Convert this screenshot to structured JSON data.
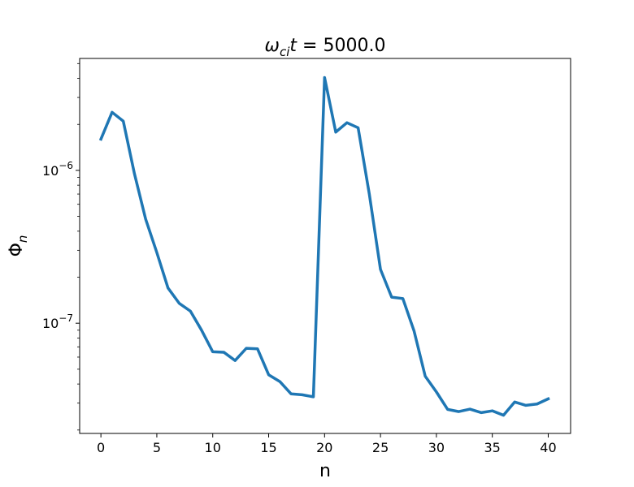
{
  "chart_data": {
    "type": "line",
    "title": "ωcit = 5000.0",
    "title_parts": {
      "omega": "ω",
      "sub": "ci",
      "t": "t",
      "eq": " = 5000.0"
    },
    "xlabel": "n",
    "ylabel": "Φn",
    "ylabel_parts": {
      "phi": "Φ",
      "sub": "n"
    },
    "y_scale": "log",
    "xlim": [
      -1.9,
      42.0
    ],
    "ylim": [
      1.9e-08,
      5.4e-06
    ],
    "x_ticks": [
      0,
      5,
      10,
      15,
      20,
      25,
      30,
      35,
      40
    ],
    "y_major_ticks": [
      {
        "value": 1e-06,
        "base": "10",
        "exp": "−6"
      },
      {
        "value": 1e-07,
        "base": "10",
        "exp": "−7"
      }
    ],
    "grid": false,
    "series": [
      {
        "color": "#1f77b4",
        "x": [
          0,
          1,
          2,
          3,
          4,
          5,
          6,
          7,
          8,
          9,
          10,
          11,
          12,
          13,
          14,
          15,
          16,
          17,
          18,
          19,
          20,
          21,
          22,
          23,
          24,
          25,
          26,
          27,
          28,
          29,
          30,
          31,
          32,
          33,
          34,
          35,
          36,
          37,
          38,
          39,
          40
        ],
        "y": [
          1.6e-06,
          2.4e-06,
          2.1e-06,
          9.5e-07,
          4.8e-07,
          2.9e-07,
          1.7e-07,
          1.35e-07,
          1.2e-07,
          9e-08,
          6.5e-08,
          6.45e-08,
          5.7e-08,
          6.85e-08,
          6.8e-08,
          4.6e-08,
          4.15e-08,
          3.45e-08,
          3.4e-08,
          3.3e-08,
          4.05e-06,
          1.78e-06,
          2.05e-06,
          1.9e-06,
          7e-07,
          2.25e-07,
          1.48e-07,
          1.45e-07,
          8.9e-08,
          4.5e-08,
          3.55e-08,
          2.73e-08,
          2.64e-08,
          2.74e-08,
          2.6e-08,
          2.67e-08,
          2.5e-08,
          3.05e-08,
          2.9e-08,
          2.96e-08,
          3.2e-08
        ]
      }
    ]
  }
}
